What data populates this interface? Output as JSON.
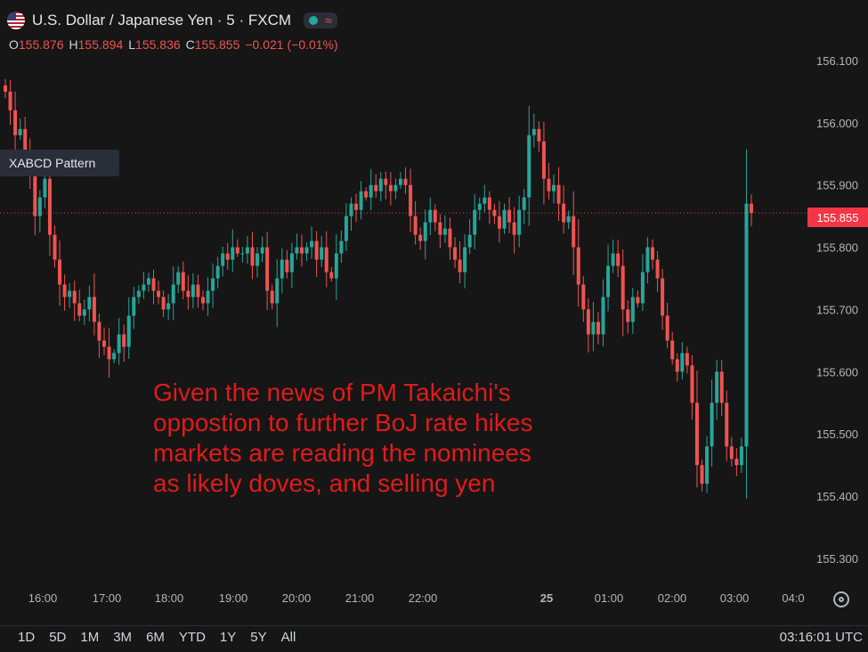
{
  "header": {
    "title": "U.S. Dollar / Japanese Yen · 5 · FXCM",
    "flag_icon": "us-japan-flag-icon",
    "ohlc": {
      "o_label": "O",
      "o_value": "155.876",
      "h_label": "H",
      "h_value": "155.894",
      "l_label": "L",
      "l_value": "155.836",
      "c_label": "C",
      "c_value": "155.855",
      "change": "−0.021 (−0.01%)"
    }
  },
  "pattern_label": "XABCD Pattern",
  "current_price": "155.855",
  "annotation_lines": [
    "Given the news of PM Takaichi's",
    "oppostion to further BoJ rate hikes",
    "markets are reading the nominees",
    "as likely doves, and selling yen"
  ],
  "footer": {
    "timeframes": [
      "1D",
      "5D",
      "1M",
      "3M",
      "6M",
      "YTD",
      "1Y",
      "5Y",
      "All"
    ],
    "clock": "03:16:01 UTC"
  },
  "colors": {
    "up": "#26a69a",
    "down": "#ef5350",
    "background": "#161616",
    "annotation": "#e01b1b"
  },
  "chart_data": {
    "type": "candlestick",
    "symbol": "USDJPY",
    "interval": "5",
    "y_ticks": [
      "156.100",
      "156.000",
      "155.900",
      "155.800",
      "155.700",
      "155.600",
      "155.500",
      "155.400",
      "155.300"
    ],
    "x_ticks": [
      "16:00",
      "17:00",
      "18:00",
      "19:00",
      "20:00",
      "21:00",
      "22:00",
      "25",
      "01:00",
      "02:00",
      "03:00",
      "04:0"
    ],
    "ylim": [
      155.257,
      156.14
    ],
    "close_series": [
      156.05,
      156.02,
      155.98,
      155.99,
      155.95,
      155.92,
      155.85,
      155.88,
      155.91,
      155.82,
      155.78,
      155.74,
      155.72,
      155.73,
      155.71,
      155.69,
      155.7,
      155.72,
      155.68,
      155.65,
      155.64,
      155.62,
      155.63,
      155.66,
      155.64,
      155.69,
      155.72,
      155.73,
      155.74,
      155.75,
      155.73,
      155.72,
      155.7,
      155.71,
      155.74,
      155.76,
      155.73,
      155.72,
      155.74,
      155.72,
      155.71,
      155.73,
      155.75,
      155.77,
      155.79,
      155.78,
      155.8,
      155.79,
      155.79,
      155.8,
      155.77,
      155.79,
      155.8,
      155.73,
      155.71,
      155.75,
      155.78,
      155.76,
      155.79,
      155.8,
      155.79,
      155.8,
      155.81,
      155.78,
      155.8,
      155.76,
      155.75,
      155.79,
      155.81,
      155.85,
      155.87,
      155.86,
      155.89,
      155.88,
      155.9,
      155.89,
      155.91,
      155.9,
      155.89,
      155.9,
      155.91,
      155.9,
      155.85,
      155.82,
      155.81,
      155.84,
      155.86,
      155.84,
      155.82,
      155.83,
      155.8,
      155.78,
      155.76,
      155.8,
      155.82,
      155.86,
      155.87,
      155.88,
      155.86,
      155.85,
      155.83,
      155.86,
      155.84,
      155.82,
      155.86,
      155.88,
      155.98,
      155.99,
      155.97,
      155.91,
      155.89,
      155.9,
      155.87,
      155.84,
      155.85,
      155.8,
      155.74,
      155.7,
      155.66,
      155.68,
      155.66,
      155.72,
      155.77,
      155.79,
      155.77,
      155.7,
      155.68,
      155.72,
      155.71,
      155.76,
      155.8,
      155.78,
      155.75,
      155.69,
      155.65,
      155.62,
      155.6,
      155.63,
      155.61,
      155.55,
      155.45,
      155.42,
      155.48,
      155.55,
      155.6,
      155.55,
      155.48,
      155.46,
      155.45,
      155.48,
      155.87,
      155.855
    ]
  }
}
